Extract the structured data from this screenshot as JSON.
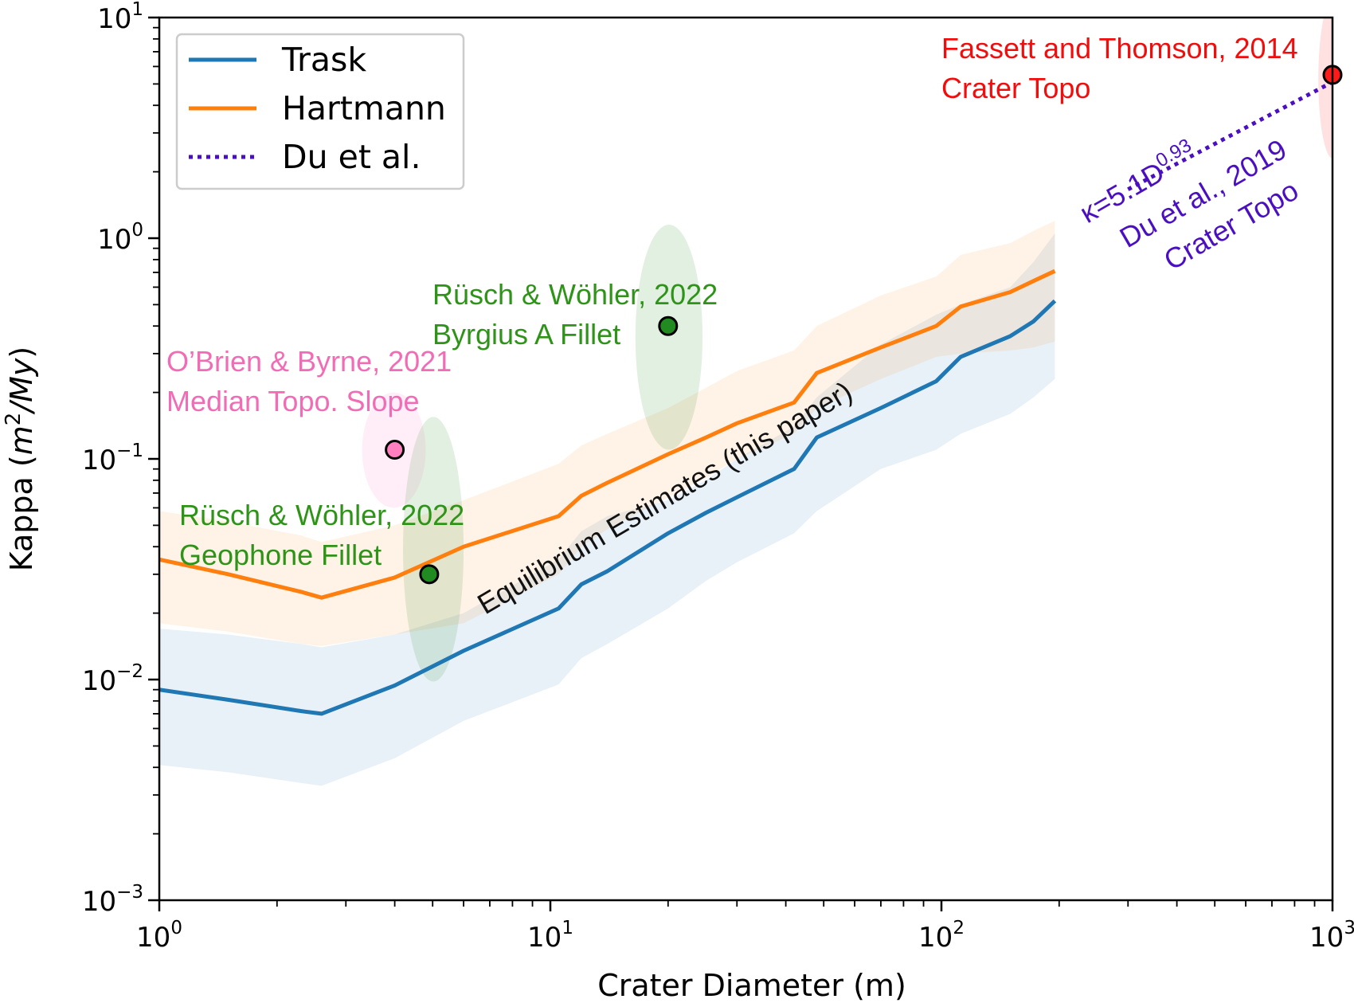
{
  "chart_data": {
    "type": "line",
    "xlabel": "Crater Diameter (m)",
    "ylabel_main": "Kappa (",
    "ylabel_units": "m",
    "ylabel_exp": "2",
    "ylabel_rest": "/My",
    "ylabel_close": ")",
    "x_scale": "log",
    "y_scale": "log",
    "xlim": [
      1,
      1000
    ],
    "ylim": [
      0.001,
      10
    ],
    "x_ticks": [
      {
        "value": 1,
        "base": "10",
        "exp": "0"
      },
      {
        "value": 10,
        "base": "10",
        "exp": "1"
      },
      {
        "value": 100,
        "base": "10",
        "exp": "2"
      },
      {
        "value": 1000,
        "base": "10",
        "exp": "3"
      }
    ],
    "y_ticks": [
      {
        "value": 0.001,
        "base": "10",
        "exp": "−3"
      },
      {
        "value": 0.01,
        "base": "10",
        "exp": "−2"
      },
      {
        "value": 0.1,
        "base": "10",
        "exp": "−1"
      },
      {
        "value": 1,
        "base": "10",
        "exp": "0"
      },
      {
        "value": 10,
        "base": "10",
        "exp": "1"
      }
    ],
    "grid": false,
    "legend_position": "top-left",
    "series": [
      {
        "name": "Trask",
        "style": "solid",
        "color": "#1f77b4",
        "x": [
          1,
          1.5,
          2.3,
          2.6,
          4,
          6,
          10.5,
          12,
          14,
          20,
          25,
          30,
          42,
          48,
          70,
          97,
          112,
          150,
          172,
          195
        ],
        "y": [
          0.009,
          0.0081,
          0.0072,
          0.007,
          0.0094,
          0.0135,
          0.021,
          0.027,
          0.031,
          0.046,
          0.057,
          0.067,
          0.09,
          0.125,
          0.17,
          0.225,
          0.29,
          0.36,
          0.42,
          0.52
        ],
        "band_upper": [
          0.017,
          0.016,
          0.0145,
          0.014,
          0.016,
          0.02,
          0.035,
          0.047,
          0.055,
          0.065,
          0.08,
          0.1,
          0.14,
          0.19,
          0.33,
          0.45,
          0.5,
          0.6,
          0.78,
          1.05
        ],
        "band_lower": [
          0.0041,
          0.0038,
          0.0034,
          0.0033,
          0.0044,
          0.0065,
          0.0095,
          0.0125,
          0.0145,
          0.021,
          0.028,
          0.034,
          0.046,
          0.058,
          0.09,
          0.11,
          0.13,
          0.16,
          0.19,
          0.23
        ],
        "band_color": "#1f77b4"
      },
      {
        "name": "Hartmann",
        "style": "solid",
        "color": "#ff7f0e",
        "x": [
          1,
          1.5,
          2.3,
          2.6,
          4,
          6,
          10.5,
          12,
          14,
          20,
          25,
          30,
          42,
          48,
          70,
          97,
          112,
          150,
          172,
          195
        ],
        "y": [
          0.035,
          0.03,
          0.025,
          0.0235,
          0.029,
          0.04,
          0.055,
          0.068,
          0.078,
          0.105,
          0.125,
          0.145,
          0.18,
          0.245,
          0.32,
          0.4,
          0.49,
          0.57,
          0.64,
          0.71
        ],
        "band_upper": [
          0.058,
          0.052,
          0.045,
          0.042,
          0.05,
          0.065,
          0.095,
          0.115,
          0.13,
          0.17,
          0.21,
          0.25,
          0.31,
          0.4,
          0.55,
          0.67,
          0.84,
          0.95,
          1.08,
          1.2
        ],
        "band_lower": [
          0.018,
          0.0165,
          0.0145,
          0.0142,
          0.016,
          0.018,
          0.03,
          0.04,
          0.048,
          0.067,
          0.082,
          0.1,
          0.13,
          0.17,
          0.23,
          0.29,
          0.3,
          0.31,
          0.32,
          0.34
        ],
        "band_color": "#ff7f0e"
      },
      {
        "name": "Du et al.",
        "style": "dotted",
        "color": "#4b0fc2",
        "x": [
          200,
          1050
        ],
        "y": [
          null,
          null
        ],
        "formula_coef": 5.1,
        "formula_exp": 0.93,
        "drawn_from_x": 300
      }
    ],
    "points": [
      {
        "name": "O'Brien & Byrne, 2021",
        "x": 4.0,
        "y": 0.11,
        "color": "#ff7fbf",
        "x_range": [
          3.3,
          4.8
        ],
        "y_range": [
          0.06,
          0.2
        ]
      },
      {
        "name": "Rüsch & Wöhler, 2022 Geophone",
        "x": 4.9,
        "y": 0.03,
        "color": "#218a21",
        "x_range": [
          4.2,
          6.0
        ],
        "y_range": [
          0.0098,
          0.155
        ]
      },
      {
        "name": "Rüsch & Wöhler, 2022 Byrgius",
        "x": 20,
        "y": 0.4,
        "color": "#218a21",
        "x_range": [
          16.5,
          24.5
        ],
        "y_range": [
          0.11,
          1.15
        ]
      },
      {
        "name": "Fassett and Thomson, 2014",
        "x": 1000,
        "y": 5.5,
        "color": "#ff1a1a",
        "x_range": [
          920,
          1090
        ],
        "y_range": [
          2.3,
          12
        ]
      }
    ],
    "annotations": {
      "obrien_line1": "O’Brien & Byrne, 2021",
      "obrien_line2": "Median Topo. Slope",
      "rusch1_line1": "Rüsch & Wöhler, 2022",
      "rusch1_line2": "Geophone Fillet",
      "rusch2_line1": "Rüsch & Wöhler, 2022",
      "rusch2_line2": "Byrgius A Fillet",
      "fassett_line1": "Fassett and Thomson, 2014",
      "fassett_line2": "Crater Topo",
      "du_formula_pre": "κ=5.1D",
      "du_formula_exp": "0.93",
      "du_line2": "Du et al., 2019",
      "du_line3": "Crater Topo",
      "equilibrium": "Equilibrium Estimates (this paper)"
    },
    "annotation_colors": {
      "obrien": "#f26cb5",
      "rusch": "#2e9418",
      "fassett": "#f20d0d",
      "du": "#4b0fc2",
      "equilibrium": "#111111"
    }
  }
}
